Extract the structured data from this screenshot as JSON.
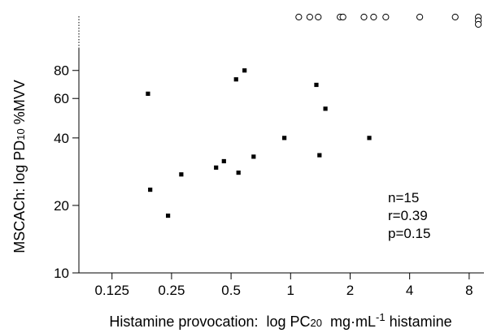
{
  "chart_data": {
    "type": "scatter",
    "xlabel": {
      "prefix": "Histamine provocation:  log PC",
      "sub": "20",
      "mid": "  mg·mL",
      "sup": "-1",
      "suffix": " histamine"
    },
    "ylabel": {
      "prefix": "MSCACh: log PD",
      "sub": "10",
      "suffix": " %MVV"
    },
    "x_scale": "log2",
    "y_scale": "log",
    "xlim": [
      0.085,
      9.5
    ],
    "ylim": [
      10,
      100
    ],
    "x_ticks": [
      {
        "value": 0.125,
        "label": "0.125"
      },
      {
        "value": 0.25,
        "label": "0.25"
      },
      {
        "value": 0.5,
        "label": "0.5"
      },
      {
        "value": 1,
        "label": "1"
      },
      {
        "value": 2,
        "label": "2"
      },
      {
        "value": 4,
        "label": "4"
      },
      {
        "value": 8,
        "label": "8"
      }
    ],
    "y_ticks": [
      {
        "value": 10,
        "label": "10"
      },
      {
        "value": 20,
        "label": "20"
      },
      {
        "value": 40,
        "label": "40"
      },
      {
        "value": 60,
        "label": "60"
      },
      {
        "value": 80,
        "label": "80"
      }
    ],
    "y_axis_dotted_above": 100,
    "grid": false,
    "legend": "none",
    "series": [
      {
        "marker": "filled-square",
        "points": [
          {
            "x": 0.19,
            "y": 63
          },
          {
            "x": 0.195,
            "y": 23.5
          },
          {
            "x": 0.24,
            "y": 18
          },
          {
            "x": 0.28,
            "y": 27.5
          },
          {
            "x": 0.42,
            "y": 29.5
          },
          {
            "x": 0.46,
            "y": 31.5
          },
          {
            "x": 0.53,
            "y": 73
          },
          {
            "x": 0.545,
            "y": 28
          },
          {
            "x": 0.585,
            "y": 80
          },
          {
            "x": 0.65,
            "y": 33
          },
          {
            "x": 0.93,
            "y": 40
          },
          {
            "x": 1.35,
            "y": 69
          },
          {
            "x": 1.4,
            "y": 33.5
          },
          {
            "x": 1.5,
            "y": 54
          },
          {
            "x": 2.5,
            "y": 40
          }
        ]
      },
      {
        "marker": "open-circle",
        "row": "top",
        "points": [
          {
            "x": 1.1
          },
          {
            "x": 1.25
          },
          {
            "x": 1.38
          },
          {
            "x": 1.78
          },
          {
            "x": 1.84
          },
          {
            "x": 2.35
          },
          {
            "x": 2.63
          },
          {
            "x": 3.03
          },
          {
            "x": 4.5
          },
          {
            "x": 6.8
          },
          {
            "x": 8.9
          },
          {
            "x": 8.9
          },
          {
            "x": 8.9
          }
        ]
      }
    ],
    "annotations": [
      "n=15",
      "r=0.39",
      "p=0.15"
    ]
  }
}
